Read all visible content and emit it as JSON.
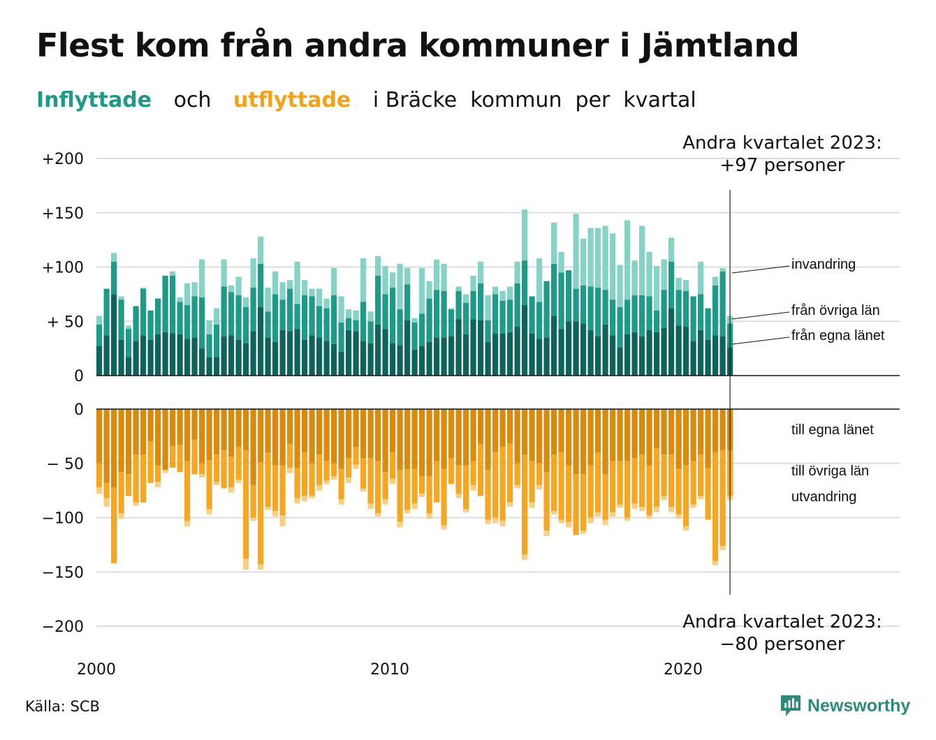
{
  "title": "Flest kom från andra kommuner i Jämtland",
  "subtitle": {
    "in_word": "Inflyttade",
    "mid": "och",
    "out_word": "utflyttade",
    "rest": "i Bräcke  kommun  per  kvartal"
  },
  "source": "Källa: SCB",
  "brand": "Newsworthy",
  "colors": {
    "in_own": "#10635a",
    "in_other": "#1f9a88",
    "in_immig": "#86d2c5",
    "out_own": "#d98b0f",
    "out_other": "#f5a623",
    "out_emig": "#f9cf86",
    "title_in": "#1f9a88",
    "title_out": "#f3a21a",
    "grid": "#dddddd"
  },
  "chart_data": {
    "type": "bar",
    "stacked": true,
    "x_start": "2000 Q1",
    "x_ticks": [
      "2000",
      "2010",
      "2020"
    ],
    "y_ticks_top": [
      "+200",
      "+150",
      "+100",
      "+ 50",
      "0"
    ],
    "y_ticks_bottom": [
      "0",
      "− 50",
      "−100",
      "−150",
      "−200"
    ],
    "top_ylim": [
      0,
      200
    ],
    "bottom_ylim": [
      -200,
      0
    ],
    "grid": true,
    "series_labels_in": [
      "invandring",
      "från övriga län",
      "från egna länet"
    ],
    "series_labels_out": [
      "till egna länet",
      "till övriga län",
      "utvandring"
    ],
    "annotation_top": [
      "Andra kvartalet 2023:",
      "+97 personer"
    ],
    "annotation_bottom": [
      "Andra kvartalet 2023:",
      "−80 personer"
    ],
    "inflow": {
      "own": [
        27,
        37,
        75,
        33,
        17,
        32,
        37,
        33,
        38,
        40,
        39,
        38,
        34,
        35,
        25,
        17,
        17,
        36,
        37,
        33,
        30,
        41,
        63,
        35,
        31,
        42,
        41,
        43,
        33,
        37,
        35,
        32,
        29,
        22,
        42,
        41,
        32,
        30,
        47,
        43,
        30,
        28,
        51,
        24,
        27,
        31,
        35,
        35,
        36,
        52,
        38,
        52,
        51,
        31,
        39,
        39,
        40,
        45,
        65,
        39,
        34,
        35,
        55,
        43,
        50,
        50,
        48,
        42,
        36,
        47,
        37,
        26,
        38,
        40,
        36,
        42,
        40,
        44,
        62,
        46,
        45,
        32,
        42,
        33,
        37,
        36,
        26
      ],
      "other": [
        20,
        43,
        30,
        37,
        26,
        32,
        43,
        27,
        33,
        52,
        53,
        30,
        31,
        38,
        47,
        21,
        30,
        46,
        40,
        41,
        33,
        40,
        40,
        24,
        44,
        28,
        39,
        23,
        41,
        36,
        29,
        30,
        45,
        27,
        11,
        10,
        36,
        20,
        45,
        32,
        51,
        33,
        33,
        25,
        30,
        40,
        44,
        43,
        25,
        26,
        29,
        26,
        34,
        20,
        36,
        30,
        30,
        40,
        41,
        34,
        34,
        52,
        48,
        52,
        47,
        30,
        35,
        40,
        45,
        32,
        33,
        37,
        32,
        34,
        38,
        31,
        20,
        35,
        43,
        33,
        33,
        41,
        33,
        29,
        46,
        60,
        22
      ],
      "immig": [
        8,
        0,
        8,
        3,
        3,
        0,
        1,
        0,
        0,
        0,
        4,
        4,
        20,
        13,
        35,
        13,
        15,
        25,
        6,
        17,
        9,
        27,
        25,
        22,
        21,
        16,
        8,
        39,
        14,
        7,
        16,
        9,
        25,
        24,
        8,
        9,
        40,
        9,
        18,
        26,
        14,
        42,
        15,
        4,
        42,
        16,
        28,
        25,
        1,
        4,
        8,
        14,
        20,
        23,
        7,
        9,
        12,
        20,
        47,
        0,
        40,
        0,
        38,
        19,
        0,
        69,
        43,
        54,
        55,
        59,
        61,
        39,
        73,
        32,
        64,
        41,
        41,
        28,
        22,
        11,
        10,
        0,
        30,
        0,
        8,
        3,
        7
      ]
    },
    "outflow": {
      "own": [
        50,
        68,
        72,
        58,
        60,
        42,
        42,
        30,
        52,
        56,
        34,
        33,
        48,
        28,
        50,
        47,
        42,
        38,
        44,
        35,
        38,
        70,
        49,
        40,
        52,
        52,
        32,
        54,
        40,
        50,
        42,
        48,
        50,
        55,
        45,
        35,
        45,
        45,
        48,
        58,
        40,
        56,
        55,
        55,
        62,
        62,
        48,
        55,
        45,
        52,
        52,
        48,
        32,
        56,
        40,
        35,
        32,
        50,
        42,
        48,
        50,
        58,
        42,
        40,
        52,
        60,
        60,
        52,
        40,
        60,
        48,
        48,
        48,
        45,
        42,
        52,
        36,
        42,
        42,
        55,
        52,
        48,
        42,
        54,
        40,
        38,
        38
      ],
      "other": [
        22,
        14,
        70,
        38,
        20,
        44,
        44,
        38,
        15,
        0,
        20,
        25,
        55,
        32,
        10,
        45,
        25,
        35,
        28,
        30,
        100,
        30,
        94,
        50,
        42,
        46,
        22,
        28,
        40,
        30,
        28,
        18,
        12,
        28,
        18,
        16,
        28,
        42,
        48,
        25,
        24,
        48,
        38,
        32,
        16,
        34,
        38,
        52,
        24,
        26,
        40,
        22,
        48,
        46,
        60,
        68,
        54,
        20,
        92,
        38,
        20,
        54,
        52,
        62,
        52,
        56,
        52,
        48,
        55,
        42,
        47,
        40,
        52,
        42,
        48,
        46,
        54,
        38,
        48,
        42,
        56,
        40,
        38,
        48,
        100,
        88,
        42
      ],
      "emig": [
        6,
        8,
        0,
        5,
        0,
        3,
        0,
        0,
        5,
        3,
        0,
        0,
        5,
        0,
        3,
        5,
        3,
        0,
        5,
        3,
        10,
        3,
        5,
        3,
        5,
        10,
        5,
        5,
        5,
        2,
        5,
        3,
        3,
        5,
        5,
        4,
        3,
        5,
        3,
        5,
        5,
        5,
        3,
        5,
        3,
        5,
        0,
        4,
        0,
        4,
        3,
        5,
        0,
        4,
        5,
        5,
        4,
        3,
        5,
        5,
        4,
        5,
        3,
        3,
        5,
        0,
        3,
        5,
        4,
        5,
        4,
        3,
        3,
        5,
        4,
        3,
        5,
        4,
        5,
        4,
        4,
        3,
        3,
        0,
        4,
        4,
        4
      ]
    }
  }
}
